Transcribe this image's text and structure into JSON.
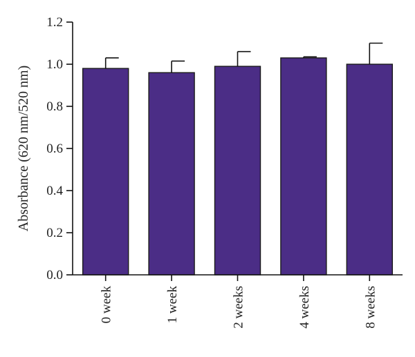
{
  "chart_data": {
    "type": "bar",
    "categories": [
      "0 week",
      "1 week",
      "2 weeks",
      "4 weeks",
      "8 weeks"
    ],
    "values": [
      0.98,
      0.96,
      0.99,
      1.03,
      1.0
    ],
    "error_upper": [
      0.05,
      0.055,
      0.07,
      0.005,
      0.1
    ],
    "title": "",
    "xlabel": "",
    "ylabel": "Absorbance (620 nm/520 nm)",
    "ylim": [
      0,
      1.2
    ],
    "yticks": [
      "0.0",
      "0.2",
      "0.4",
      "0.6",
      "0.8",
      "1.0",
      "1.2"
    ],
    "bar_color": "#4b2d86",
    "grid": false,
    "legend": "none"
  }
}
